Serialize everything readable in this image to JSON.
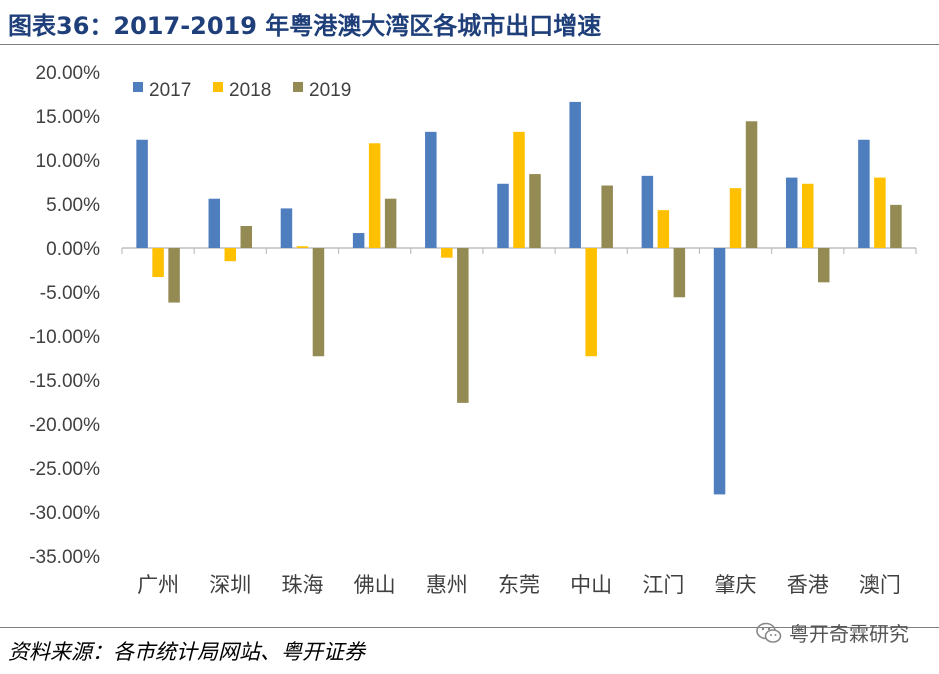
{
  "title": "图表36：2017-2019 年粤港澳大湾区各城市出口增速",
  "source": "资料来源：各市统计局网站、粤开证券",
  "brand": "粤开奇霖研究",
  "colors": {
    "2017": "#4f7ebf",
    "2018": "#ffc000",
    "2019": "#948a54"
  },
  "chart_data": {
    "type": "bar",
    "title": "",
    "xlabel": "",
    "ylabel": "",
    "ylim": [
      -35,
      20
    ],
    "yticks": [
      20,
      15,
      10,
      5,
      0,
      -5,
      -10,
      -15,
      -20,
      -25,
      -30,
      -35
    ],
    "ytick_labels": [
      "20.00%",
      "15.00%",
      "10.00%",
      "5.00%",
      "0.00%",
      "-5.00%",
      "-10.00%",
      "-15.00%",
      "-20.00%",
      "-25.00%",
      "-30.00%",
      "-35.00%"
    ],
    "grid": false,
    "legend_position": "top-left",
    "categories": [
      "广州",
      "深圳",
      "珠海",
      "佛山",
      "惠州",
      "东莞",
      "中山",
      "江门",
      "肇庆",
      "香港",
      "澳门"
    ],
    "series": [
      {
        "name": "2017",
        "values": [
          12.3,
          5.6,
          4.5,
          1.7,
          13.2,
          7.3,
          16.6,
          8.2,
          -28.0,
          8.0,
          12.3
        ]
      },
      {
        "name": "2018",
        "values": [
          -3.3,
          -1.5,
          0.2,
          11.9,
          -1.1,
          13.2,
          -12.3,
          4.3,
          6.8,
          7.3,
          8.0
        ]
      },
      {
        "name": "2019",
        "values": [
          -6.2,
          2.5,
          -12.3,
          5.6,
          -17.6,
          8.4,
          7.1,
          -5.6,
          14.4,
          -3.9,
          4.9
        ]
      }
    ]
  }
}
